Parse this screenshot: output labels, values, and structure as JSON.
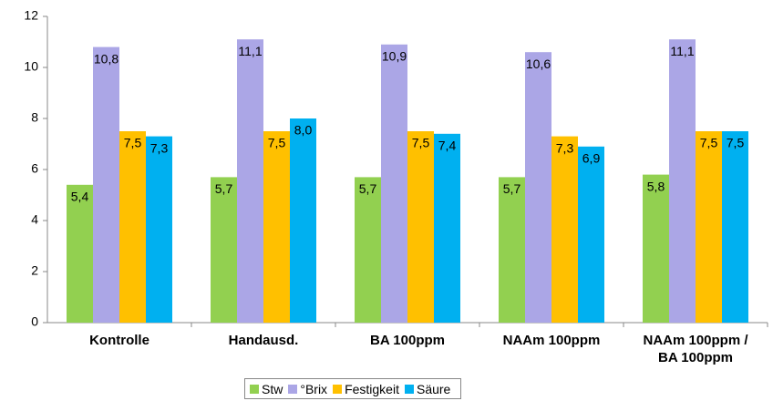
{
  "chart_data": {
    "type": "bar",
    "categories": [
      "Kontrolle",
      "Handausd.",
      "BA 100ppm",
      "NAAm 100ppm",
      "NAAm 100ppm / BA 100ppm"
    ],
    "series": [
      {
        "name": "Stw",
        "color": "#92d050",
        "values": [
          5.4,
          5.7,
          5.7,
          5.7,
          5.8
        ],
        "value_labels": [
          "5,4",
          "5,7",
          "5,7",
          "5,7",
          "5,8"
        ]
      },
      {
        "name": "°Brix",
        "color": "#aba6e6",
        "values": [
          10.8,
          11.1,
          10.9,
          10.6,
          11.1
        ],
        "value_labels": [
          "10,8",
          "11,1",
          "10,9",
          "10,6",
          "11,1"
        ]
      },
      {
        "name": "Festigkeit",
        "color": "#ffc000",
        "values": [
          7.5,
          7.5,
          7.5,
          7.3,
          7.5
        ],
        "value_labels": [
          "7,5",
          "7,5",
          "7,5",
          "7,3",
          "7,5"
        ]
      },
      {
        "name": "Säure",
        "color": "#00b0f0",
        "values": [
          7.3,
          8.0,
          7.4,
          6.9,
          7.5
        ],
        "value_labels": [
          "7,3",
          "8,0",
          "7,4",
          "6,9",
          "7,5"
        ]
      }
    ],
    "ylim": [
      0,
      12
    ],
    "yticks": [
      0,
      2,
      4,
      6,
      8,
      10,
      12
    ],
    "grid": false,
    "legend": "bottom"
  }
}
